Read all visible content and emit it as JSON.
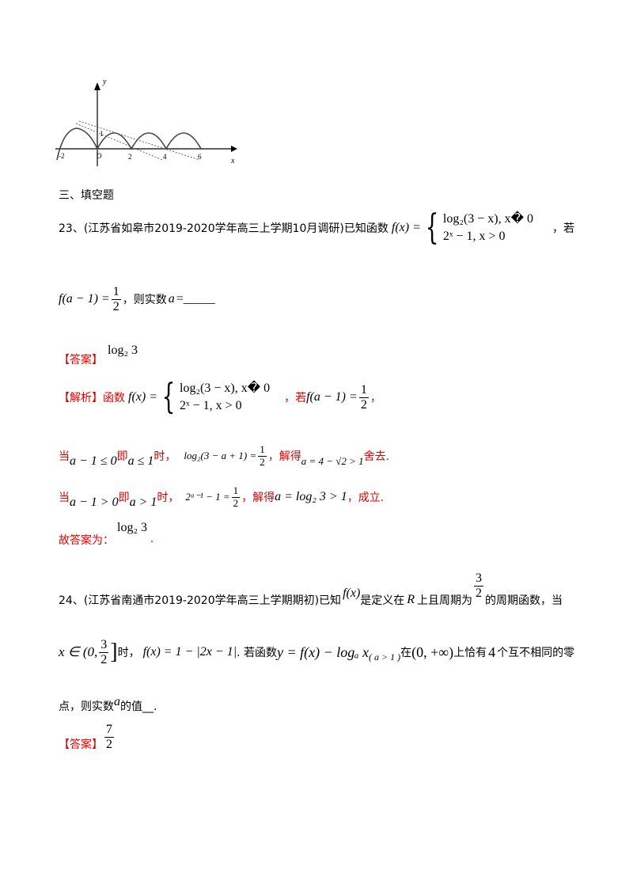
{
  "graph": {
    "y_label": "y",
    "x_label": "x",
    "ticks": [
      "-2",
      "O",
      "2",
      "4",
      "6"
    ],
    "y_tick": "1"
  },
  "section_title": "三、填空题",
  "q23": {
    "number": "23、",
    "source": "(江苏省如皋市2019-2020学年高三上学期10月调研)",
    "lead": "已知函数",
    "f": "f(x) =",
    "piece1": "log₂(3 − x), x� 0",
    "piece2": "2ˣ − 1, x > 0",
    "trail": "，若",
    "cond": "f(a − 1) =",
    "half_n": "1",
    "half_d": "2",
    "ask": "，则实数",
    "var": "a",
    "blank": "=_____",
    "answer_tag": "【答案】",
    "answer": "log₂ 3",
    "sol_tag": "【解析】",
    "sol_lead": "函数",
    "sol_if": "，若",
    "sol_comma": "，",
    "case1_a": "当",
    "case1_m1": "a − 1 ≤ 0",
    "case1_b": "即",
    "case1_m2": "a ≤ 1",
    "case1_c": "时，",
    "case1_m3": "log₂(3 − a + 1) =",
    "case1_d": "，解得",
    "case1_m4": "a = 4 − √2 > 1",
    "case1_e": "舍去.",
    "case2_a": "当",
    "case2_m1": "a − 1 > 0",
    "case2_b": "即",
    "case2_m2": "a > 1",
    "case2_c": "时，",
    "case2_m3": "2ᵃ⁻¹ − 1 =",
    "case2_d": "，解得",
    "case2_m4": "a = log₂ 3 > 1",
    "case2_e": "，成立.",
    "final_lead": "故答案为：",
    "final": "log₂ 3",
    "final_dot": "."
  },
  "q24": {
    "number": "24、",
    "source": "(江苏省南通市2019-2020学年高三上学期期初)",
    "lead": "已知",
    "fx": "f(x)",
    "t1": "是定义在",
    "R": "R",
    "t2": "上且周期为",
    "period_n": "3",
    "period_d": "2",
    "t3": "的周期函数，当",
    "dom_a": "x ∈ (0,",
    "dom_b": "]",
    "t4": "时，",
    "def": "f(x) = 1 − |2x − 1|",
    "t5": ". 若函数",
    "yfun": "y = f(x) − logₐ x",
    "cond": "( a > 1 )",
    "t6": "在",
    "interval": "(0, +∞)",
    "t7": "上恰有",
    "count": "4",
    "t8": "个互不相同的零",
    "t9": "点，则实数",
    "avar": "a",
    "t10": "的值__.",
    "answer_tag": "【答案】",
    "ans_n": "7",
    "ans_d": "2"
  }
}
